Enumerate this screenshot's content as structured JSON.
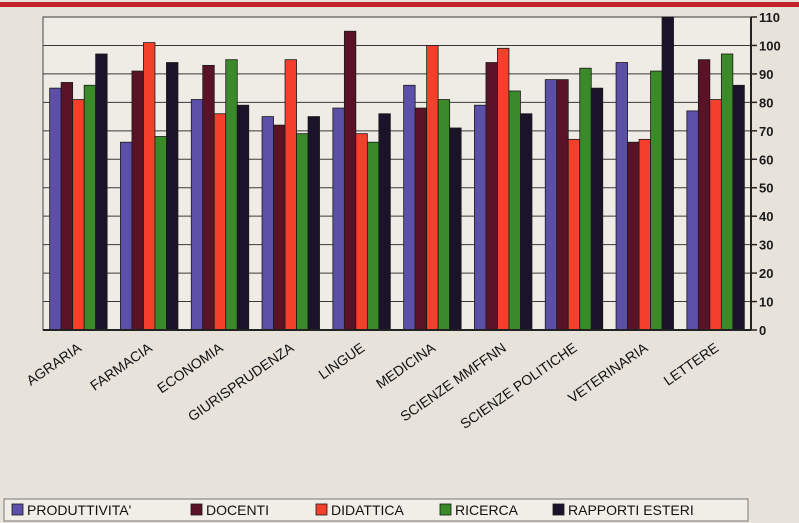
{
  "chart_data": {
    "type": "bar",
    "categories": [
      "AGRARIA",
      "FARMACIA",
      "ECONOMIA",
      "GIURISPRUDENZA",
      "LINGUE",
      "MEDICINA",
      "SCIENZE MMFFNN",
      "SCIENZE POLITICHE",
      "VETERINARIA",
      "LETTERE"
    ],
    "series": [
      {
        "name": "PRODUTTIVITA'",
        "color": "#5b4fa8",
        "values": [
          85,
          66,
          81,
          75,
          78,
          86,
          79,
          88,
          94,
          77
        ]
      },
      {
        "name": "DOCENTI",
        "color": "#5a1326",
        "values": [
          87,
          91,
          93,
          72,
          105,
          78,
          94,
          88,
          66,
          95
        ]
      },
      {
        "name": "DIDATTICA",
        "color": "#f2402a",
        "values": [
          81,
          101,
          76,
          95,
          69,
          100,
          99,
          67,
          67,
          81
        ]
      },
      {
        "name": "RICERCA",
        "color": "#3a8a2a",
        "values": [
          86,
          68,
          95,
          69,
          66,
          81,
          84,
          92,
          91,
          97
        ]
      },
      {
        "name": "RAPPORTI ESTERI",
        "color": "#1b1329",
        "values": [
          97,
          94,
          79,
          75,
          76,
          71,
          76,
          85,
          110,
          86
        ]
      }
    ],
    "y_ticks": [
      "0",
      "10",
      "20",
      "30",
      "40",
      "50",
      "60",
      "70",
      "80",
      "90",
      "100",
      "110"
    ],
    "ylim": [
      0,
      110
    ],
    "grid": true,
    "legend_position": "bottom",
    "title": "",
    "xlabel": "",
    "ylabel": ""
  }
}
